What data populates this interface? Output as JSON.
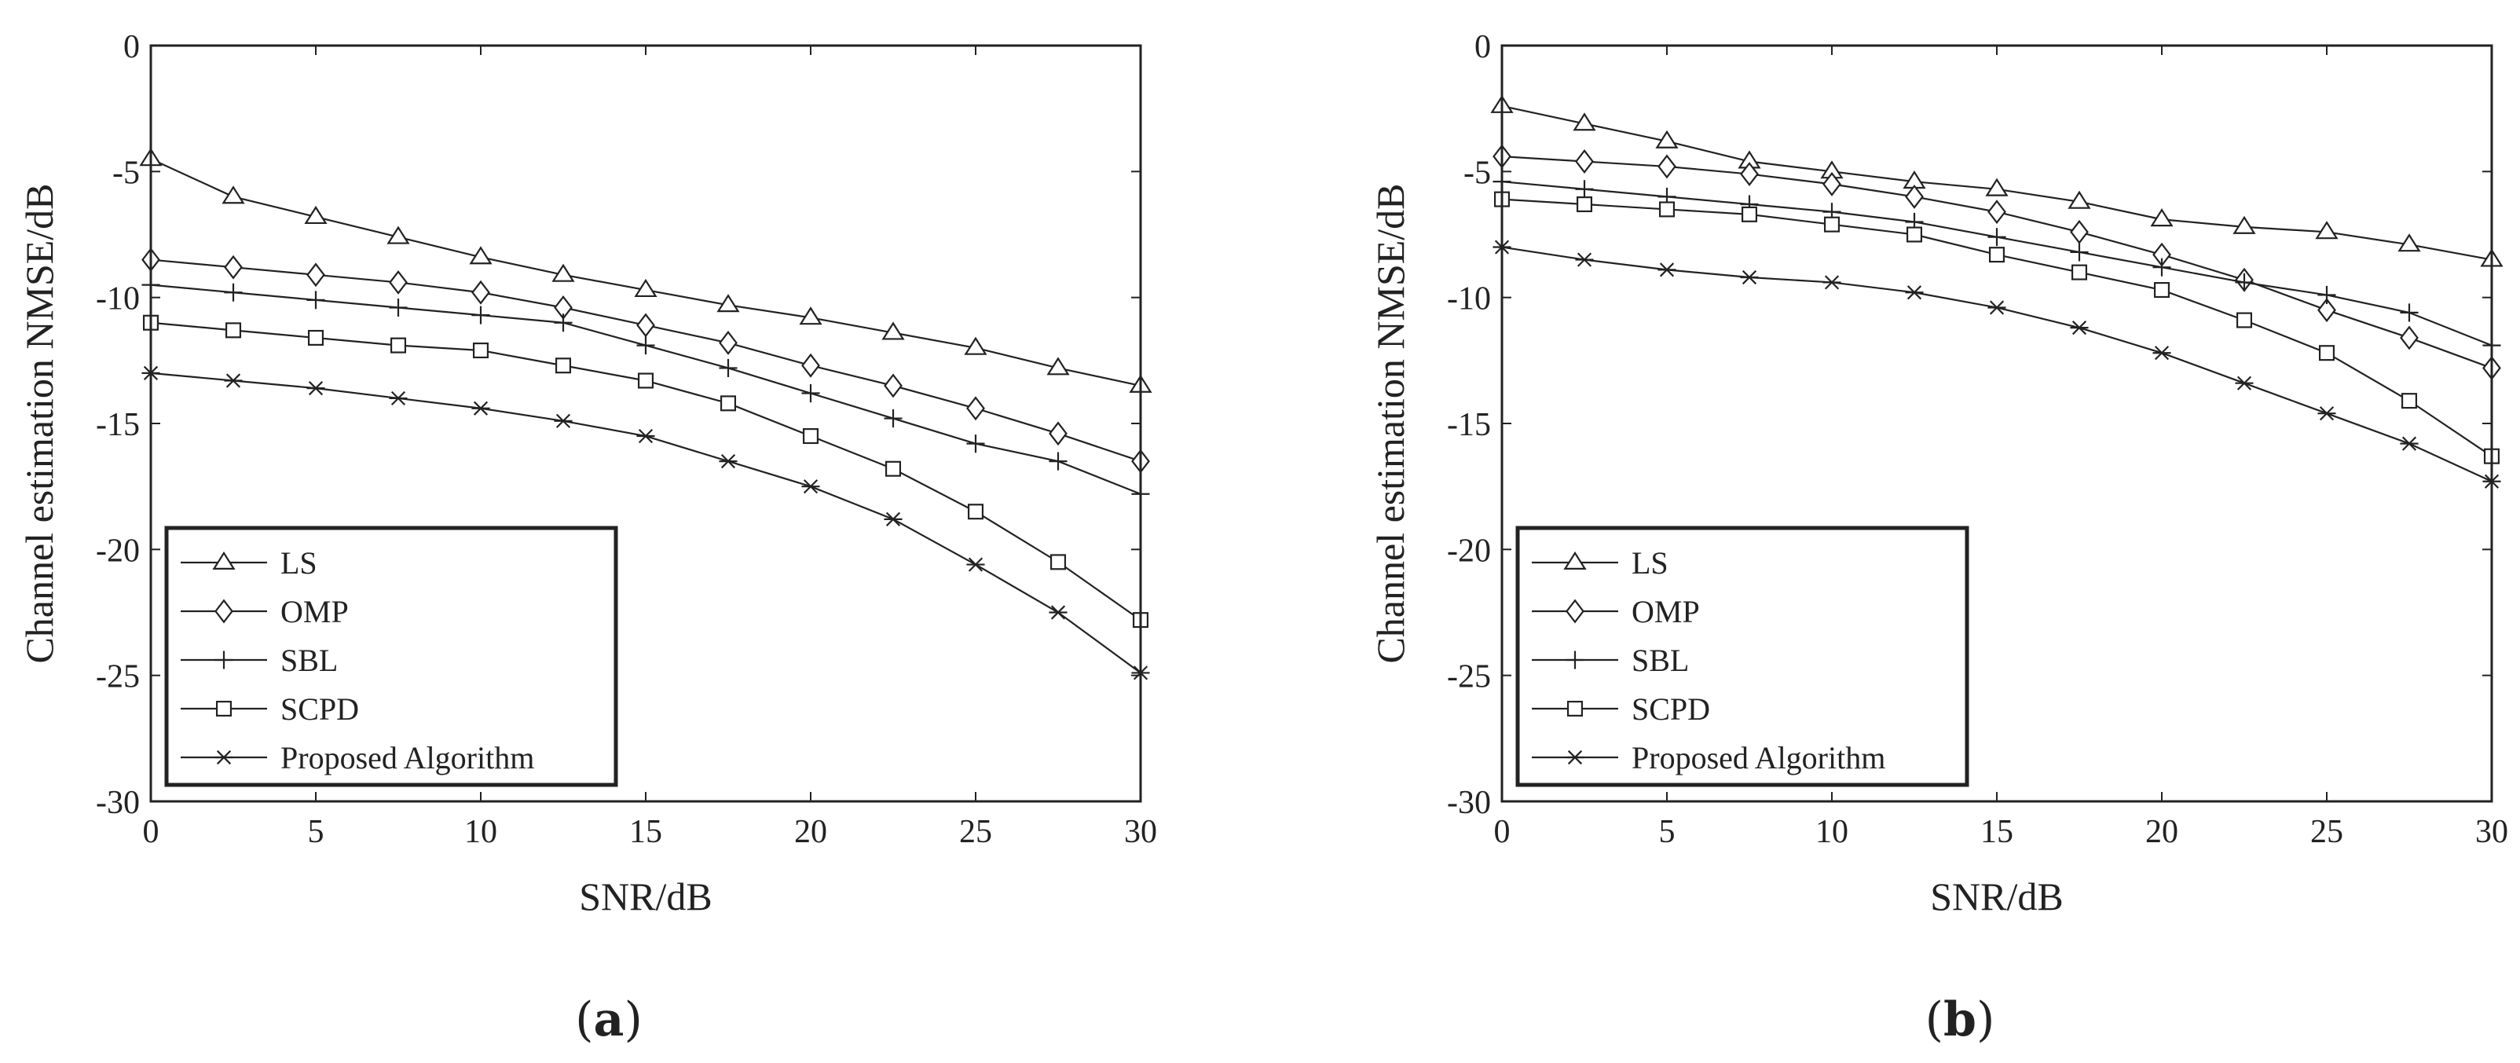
{
  "chart_data": [
    {
      "type": "line",
      "panel_label": "(a)",
      "panel_label_parts": [
        "(",
        "a",
        ")"
      ],
      "xlabel": "SNR/dB",
      "ylabel": "Channel estimation  NMSE/dB",
      "xlim": [
        0,
        30
      ],
      "ylim": [
        -30,
        0
      ],
      "xticks": [
        0,
        5,
        10,
        15,
        20,
        25,
        30
      ],
      "yticks": [
        0,
        -5,
        -10,
        -15,
        -20,
        -25,
        -30
      ],
      "x": [
        0,
        2.5,
        5,
        7.5,
        10,
        12.5,
        15,
        17.5,
        20,
        22.5,
        25,
        27.5,
        30
      ],
      "legend_position": "bottom-left",
      "series": [
        {
          "name": "LS",
          "marker": "triangle",
          "values": [
            -4.5,
            -6.0,
            -6.8,
            -7.6,
            -8.4,
            -9.1,
            -9.7,
            -10.3,
            -10.8,
            -11.4,
            -12.0,
            -12.8,
            -13.5
          ]
        },
        {
          "name": "OMP",
          "marker": "diamond",
          "values": [
            -8.5,
            -8.8,
            -9.1,
            -9.4,
            -9.8,
            -10.4,
            -11.1,
            -11.8,
            -12.7,
            -13.5,
            -14.4,
            -15.4,
            -16.5
          ]
        },
        {
          "name": "SBL",
          "marker": "plus",
          "values": [
            -9.5,
            -9.8,
            -10.1,
            -10.4,
            -10.7,
            -11.0,
            -11.9,
            -12.8,
            -13.8,
            -14.8,
            -15.8,
            -16.5,
            -17.8
          ]
        },
        {
          "name": "SCPD",
          "marker": "square",
          "values": [
            -11.0,
            -11.3,
            -11.6,
            -11.9,
            -12.1,
            -12.7,
            -13.3,
            -14.2,
            -15.5,
            -16.8,
            -18.5,
            -20.5,
            -22.8
          ]
        },
        {
          "name": "Proposed Algorithm",
          "marker": "star",
          "values": [
            -13.0,
            -13.3,
            -13.6,
            -14.0,
            -14.4,
            -14.9,
            -15.5,
            -16.5,
            -17.5,
            -18.8,
            -20.6,
            -22.5,
            -24.9
          ]
        }
      ]
    },
    {
      "type": "line",
      "panel_label": "(b)",
      "panel_label_parts": [
        "(",
        "b",
        ")"
      ],
      "xlabel": "SNR/dB",
      "ylabel": "Channel estimation  NMSE/dB",
      "xlim": [
        0,
        30
      ],
      "ylim": [
        -30,
        0
      ],
      "xticks": [
        0,
        5,
        10,
        15,
        20,
        25,
        30
      ],
      "yticks": [
        0,
        -5,
        -10,
        -15,
        -20,
        -25,
        -30
      ],
      "x": [
        0,
        2.5,
        5,
        7.5,
        10,
        12.5,
        15,
        17.5,
        20,
        22.5,
        25,
        27.5,
        30
      ],
      "legend_position": "bottom-left",
      "series": [
        {
          "name": "LS",
          "marker": "triangle",
          "values": [
            -2.4,
            -3.1,
            -3.8,
            -4.6,
            -5.0,
            -5.4,
            -5.7,
            -6.2,
            -6.9,
            -7.2,
            -7.4,
            -7.9,
            -8.5
          ]
        },
        {
          "name": "OMP",
          "marker": "diamond",
          "values": [
            -4.4,
            -4.6,
            -4.8,
            -5.1,
            -5.5,
            -6.0,
            -6.6,
            -7.4,
            -8.3,
            -9.3,
            -10.5,
            -11.6,
            -12.8
          ]
        },
        {
          "name": "SBL",
          "marker": "plus",
          "values": [
            -5.4,
            -5.7,
            -6.0,
            -6.3,
            -6.6,
            -7.0,
            -7.6,
            -8.2,
            -8.8,
            -9.4,
            -9.9,
            -10.6,
            -11.9
          ]
        },
        {
          "name": "SCPD",
          "marker": "square",
          "values": [
            -6.1,
            -6.3,
            -6.5,
            -6.7,
            -7.1,
            -7.5,
            -8.3,
            -9.0,
            -9.7,
            -10.9,
            -12.2,
            -14.1,
            -16.3
          ]
        },
        {
          "name": "Proposed Algorithm",
          "marker": "star",
          "values": [
            -8.0,
            -8.5,
            -8.9,
            -9.2,
            -9.4,
            -9.8,
            -10.4,
            -11.2,
            -12.2,
            -13.4,
            -14.6,
            -15.8,
            -17.3
          ]
        }
      ]
    }
  ]
}
